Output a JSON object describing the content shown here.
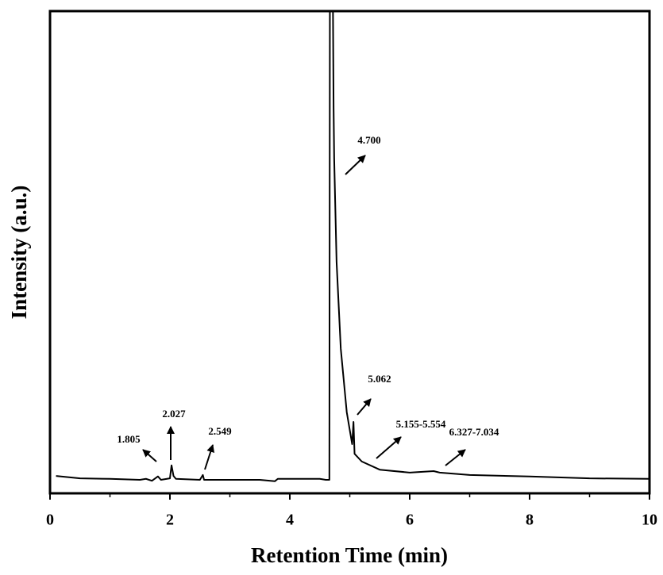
{
  "chart_data": {
    "type": "line",
    "xlabel": "Retention Time (min)",
    "ylabel": "Intensity (a.u.)",
    "xlim": [
      0,
      10
    ],
    "xticks": [
      0,
      2,
      4,
      6,
      8,
      10
    ],
    "xminorticks": [
      1,
      3,
      5,
      7,
      9
    ],
    "ylim": [
      0,
      100
    ],
    "color": "#000000",
    "x": [
      0.1,
      0.5,
      1.0,
      1.5,
      1.6,
      1.7,
      1.8,
      1.85,
      2.0,
      2.027,
      2.06,
      2.1,
      2.5,
      2.549,
      2.57,
      3.0,
      3.5,
      3.75,
      3.8,
      4.0,
      4.5,
      4.6,
      4.66,
      4.67,
      4.71,
      4.73,
      4.74,
      4.78,
      4.85,
      4.95,
      5.04,
      5.062,
      5.08,
      5.2,
      5.5,
      6.0,
      6.4,
      6.5,
      7.0,
      8.0,
      9.0,
      10.0
    ],
    "values": [
      3.6,
      3.1,
      3.0,
      2.8,
      3.0,
      2.6,
      3.5,
      2.8,
      3.1,
      5.8,
      3.6,
      3.0,
      2.8,
      3.8,
      2.8,
      2.8,
      2.8,
      2.5,
      3.0,
      3.0,
      3.0,
      2.8,
      2.8,
      120,
      120,
      80,
      69.4,
      48,
      30,
      16.8,
      10.2,
      14.8,
      8.2,
      6.6,
      4.9,
      4.3,
      4.6,
      4.3,
      3.8,
      3.5,
      3.1,
      3.0
    ],
    "annotations": [
      {
        "text": "1.805"
      },
      {
        "text": "2.027"
      },
      {
        "text": "2.549"
      },
      {
        "text": "4.700"
      },
      {
        "text": "5.062"
      },
      {
        "text": "5.155-5.554"
      },
      {
        "text": "6.327-7.034"
      }
    ]
  }
}
